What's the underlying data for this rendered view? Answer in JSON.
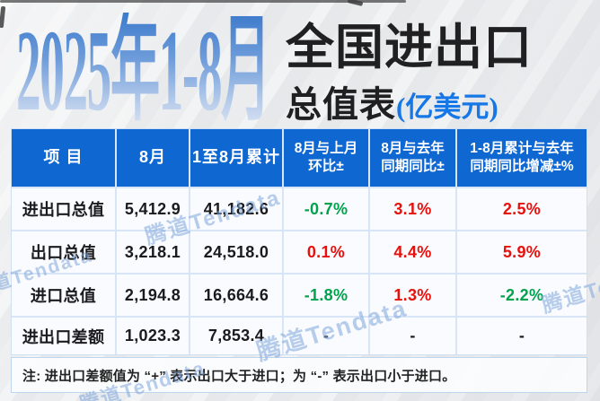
{
  "title": {
    "period": "2025年1-8月",
    "main": "全国进出口",
    "sub": "总值表",
    "unit": "(亿美元)"
  },
  "table": {
    "headers": [
      {
        "l1": "项  目",
        "l2": ""
      },
      {
        "l1": "8月",
        "l2": ""
      },
      {
        "l1": "1至8月累计",
        "l2": ""
      },
      {
        "l1": "8月与上月",
        "l2": "环比±"
      },
      {
        "l1": "8月与去年",
        "l2": "同期同比±"
      },
      {
        "l1": "1-8月累计与去年",
        "l2": "同期同比增减±%"
      }
    ],
    "rows": [
      {
        "label": "进出口总值",
        "cells": [
          {
            "t": "5,412.9",
            "c": "black"
          },
          {
            "t": "41,182.6",
            "c": "black"
          },
          {
            "t": "-0.7%",
            "c": "green"
          },
          {
            "t": "3.1%",
            "c": "red"
          },
          {
            "t": "2.5%",
            "c": "red"
          }
        ]
      },
      {
        "label": "出口总值",
        "cells": [
          {
            "t": "3,218.1",
            "c": "black"
          },
          {
            "t": "24,518.0",
            "c": "black"
          },
          {
            "t": "0.1%",
            "c": "red"
          },
          {
            "t": "4.4%",
            "c": "red"
          },
          {
            "t": "5.9%",
            "c": "red"
          }
        ]
      },
      {
        "label": "进口总值",
        "cells": [
          {
            "t": "2,194.8",
            "c": "black"
          },
          {
            "t": "16,664.6",
            "c": "black"
          },
          {
            "t": "-1.8%",
            "c": "green"
          },
          {
            "t": "1.3%",
            "c": "red"
          },
          {
            "t": "-2.2%",
            "c": "green"
          }
        ]
      },
      {
        "label": "进出口差额",
        "cells": [
          {
            "t": "1,023.3",
            "c": "black"
          },
          {
            "t": "7,853.4",
            "c": "black"
          },
          {
            "t": "-",
            "c": "black"
          },
          {
            "t": "-",
            "c": "black"
          },
          {
            "t": "-",
            "c": "black"
          }
        ]
      }
    ]
  },
  "note": "注: 进出口差额值为 “+” 表示出口大于进口；为 “-” 表示出口小于进口。",
  "watermark": "腾道Tendata",
  "colors": {
    "header_bg": "#0f67d2",
    "up_red": "#e8100c",
    "down_green": "#00a24d",
    "unit_blue": "#1677e6",
    "title_gradient_top": "#3f7ccc",
    "title_gradient_bottom": "#dbe4f4"
  }
}
